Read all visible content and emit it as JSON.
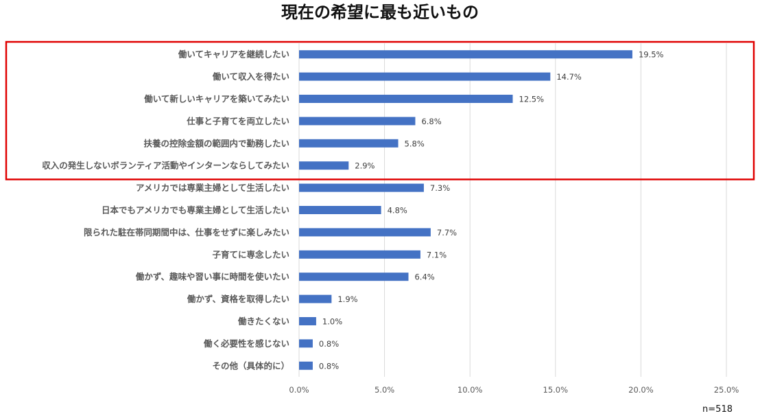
{
  "colors": {
    "bar": "#4472c4",
    "highlight": "#e00000",
    "grid": "#d9d9d9"
  },
  "note": "n=518",
  "chart_data": {
    "type": "bar",
    "orientation": "horizontal",
    "title": "現在の希望に最も近いもの",
    "categories": [
      "働いてキャリアを継続したい",
      "働いて収入を得たい",
      "働いて新しいキャリアを築いてみたい",
      "仕事と子育てを両立したい",
      "扶養の控除金額の範囲内で勤務したい",
      "収入の発生しないボランティア活動やインターンならしてみたい",
      "アメリカでは専業主婦として生活したい",
      "日本でもアメリカでも専業主婦として生活したい",
      "限られた駐在帯同期間中は、仕事をせずに楽しみたい",
      "子育てに専念したい",
      "働かず、趣味や習い事に時間を使いたい",
      "働かず、資格を取得したい",
      "働きたくない",
      "働く必要性を感じない",
      "その他（具体的に）"
    ],
    "values": [
      19.5,
      14.7,
      12.5,
      6.8,
      5.8,
      2.9,
      7.3,
      4.8,
      7.7,
      7.1,
      6.4,
      1.9,
      1.0,
      0.8,
      0.8
    ],
    "value_labels": [
      "19.5%",
      "14.7%",
      "12.5%",
      "6.8%",
      "5.8%",
      "2.9%",
      "7.3%",
      "4.8%",
      "7.7%",
      "7.1%",
      "6.4%",
      "1.9%",
      "1.0%",
      "0.8%",
      "0.8%"
    ],
    "xlim": [
      0,
      25
    ],
    "ticks": [
      0,
      5,
      10,
      15,
      20,
      25
    ],
    "tick_labels": [
      "0.0%",
      "5.0%",
      "10.0%",
      "15.0%",
      "20.0%",
      "25.0%"
    ],
    "grid": true,
    "highlighted_categories": [
      0,
      1,
      2,
      3,
      4,
      5
    ]
  }
}
